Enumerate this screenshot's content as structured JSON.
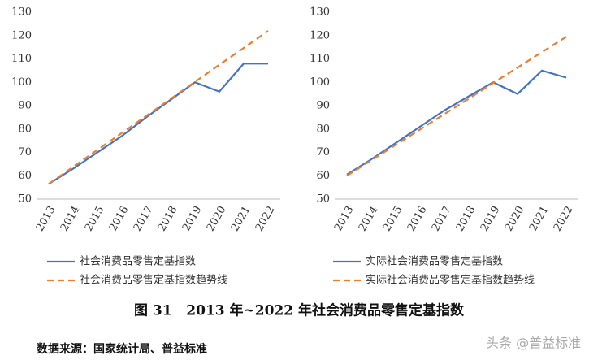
{
  "chart_data": [
    {
      "type": "line",
      "categories": [
        "2013",
        "2014",
        "2015",
        "2016",
        "2017",
        "2018",
        "2019",
        "2020",
        "2021",
        "2022"
      ],
      "ylim": [
        50,
        130
      ],
      "yticks": [
        50,
        60,
        70,
        80,
        90,
        100,
        110,
        120,
        130
      ],
      "grid": false,
      "series": [
        {
          "name": "社会消费品零售定基指数",
          "color": "#4472c4",
          "style": "solid",
          "values": [
            56.5,
            63,
            70,
            77,
            85,
            92.5,
            100,
            96,
            108,
            108
          ]
        },
        {
          "name": "社会消费品零售定基指数趋势线",
          "color": "#ed7d31",
          "style": "dashed",
          "values": [
            56.5,
            63.8,
            71.1,
            78.3,
            85.6,
            92.9,
            100.2,
            107.5,
            114.7,
            122
          ]
        }
      ]
    },
    {
      "type": "line",
      "categories": [
        "2013",
        "2014",
        "2015",
        "2016",
        "2017",
        "2018",
        "2019",
        "2020",
        "2021",
        "2022"
      ],
      "ylim": [
        50,
        130
      ],
      "yticks": [
        50,
        60,
        70,
        80,
        90,
        100,
        110,
        120,
        130
      ],
      "grid": false,
      "series": [
        {
          "name": "实际社会消费品零售定基指数",
          "color": "#4472c4",
          "style": "solid",
          "values": [
            60.5,
            67,
            74,
            81,
            88,
            94,
            100,
            95,
            105,
            102
          ]
        },
        {
          "name": "实际社会消费品零售定基指数趋势线",
          "color": "#ed7d31",
          "style": "dashed",
          "values": [
            60,
            66.6,
            73.2,
            79.8,
            86.4,
            93,
            99.7,
            106.3,
            112.9,
            119.5
          ]
        }
      ]
    }
  ],
  "caption": "图 31   2013 年~2022 年社会消费品零售定基指数",
  "source": "数据来源：国家统计局、普益标准",
  "watermark": "头条 @普益标准"
}
